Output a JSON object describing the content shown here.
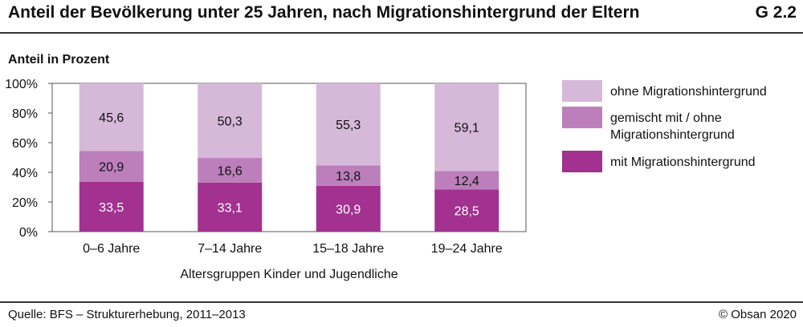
{
  "header": {
    "title": "Anteil der Bevölkerung unter 25 Jahren, nach Migrationshintergrund der Eltern",
    "figure_id": "G 2.2"
  },
  "footer": {
    "source": "Quelle: BFS – Strukturerhebung, 2011–2013",
    "copyright": "© Obsan 2020"
  },
  "colors": {
    "ohne": "#d6b8d9",
    "gemischt": "#bc7fbb",
    "mit": "#a2318f",
    "frame": "#555555"
  },
  "chart_data": {
    "type": "bar",
    "stacked": true,
    "ylabel": "Anteil in Prozent",
    "xlabel": "Altersgruppen Kinder und Jugendliche",
    "ylim": [
      0,
      100
    ],
    "yticks": [
      "0%",
      "20%",
      "40%",
      "60%",
      "80%",
      "100%"
    ],
    "ytick_values": [
      0,
      20,
      40,
      60,
      80,
      100
    ],
    "categories": [
      "0–6 Jahre",
      "7–14 Jahre",
      "15–18 Jahre",
      "19–24 Jahre"
    ],
    "series": [
      {
        "name": "mit Migrationshintergrund",
        "values": [
          33.5,
          33.1,
          30.9,
          28.5
        ],
        "labels": [
          "33,5",
          "33,1",
          "30,9",
          "28,5"
        ]
      },
      {
        "name": "gemischt mit / ohne Migrationshintergrund",
        "values": [
          20.9,
          16.6,
          13.8,
          12.4
        ],
        "labels": [
          "20,9",
          "16,6",
          "13,8",
          "12,4"
        ]
      },
      {
        "name": "ohne Migrationshintergrund",
        "values": [
          45.6,
          50.3,
          55.3,
          59.1
        ],
        "labels": [
          "45,6",
          "50,3",
          "55,3",
          "59,1"
        ]
      }
    ],
    "legend": {
      "placement": "right",
      "entries": [
        "ohne Migrationshintergrund",
        "gemischt mit / ohne Migrationshintergrund",
        "mit Migrationshintergrund"
      ]
    },
    "grid": false
  }
}
